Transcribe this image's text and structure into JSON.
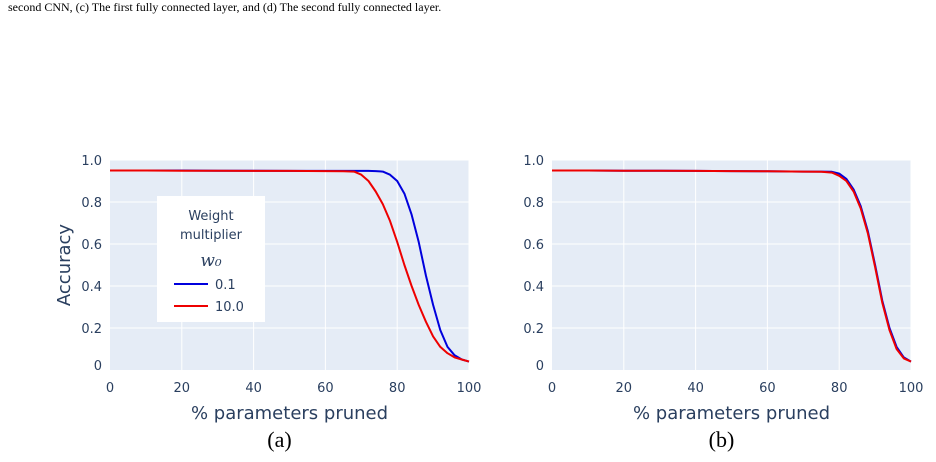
{
  "caption": "second CNN, (c) The first fully connected layer, and (d) The second fully connected layer.",
  "chart_data": [
    {
      "type": "line",
      "panel_label": "(a)",
      "xlabel": "% parameters pruned",
      "ylabel": "Accuracy",
      "xlim": [
        0,
        100
      ],
      "ylim": [
        0,
        1.0
      ],
      "xticks": [
        "0",
        "20",
        "40",
        "60",
        "80",
        "100"
      ],
      "yticks": [
        "0",
        "0.2",
        "0.4",
        "0.6",
        "0.8",
        "1.0"
      ],
      "grid": true,
      "legend": {
        "title_lines": [
          "Weight",
          "multiplier"
        ],
        "title_math": "w₀",
        "placement": "left-center"
      },
      "x": [
        0,
        10,
        20,
        30,
        40,
        50,
        60,
        65,
        68,
        70,
        72,
        74,
        76,
        78,
        80,
        82,
        84,
        86,
        88,
        90,
        92,
        94,
        96,
        98,
        100
      ],
      "series": [
        {
          "name": "0.1",
          "color": "#0000dd",
          "values": [
            0.95,
            0.95,
            0.95,
            0.949,
            0.949,
            0.948,
            0.948,
            0.948,
            0.948,
            0.948,
            0.948,
            0.947,
            0.945,
            0.93,
            0.9,
            0.84,
            0.74,
            0.61,
            0.45,
            0.31,
            0.19,
            0.11,
            0.07,
            0.05,
            0.04
          ]
        },
        {
          "name": "10.0",
          "color": "#ee0000",
          "values": [
            0.95,
            0.95,
            0.949,
            0.949,
            0.948,
            0.948,
            0.947,
            0.946,
            0.945,
            0.93,
            0.9,
            0.85,
            0.79,
            0.71,
            0.61,
            0.5,
            0.4,
            0.31,
            0.23,
            0.16,
            0.11,
            0.08,
            0.06,
            0.05,
            0.04
          ]
        }
      ]
    },
    {
      "type": "line",
      "panel_label": "(b)",
      "xlabel": "% parameters pruned",
      "ylabel": "",
      "xlim": [
        0,
        100
      ],
      "ylim": [
        0,
        1.0
      ],
      "xticks": [
        "0",
        "20",
        "40",
        "60",
        "80",
        "100"
      ],
      "yticks": [
        "0",
        "0.2",
        "0.4",
        "0.6",
        "0.8",
        "1.0"
      ],
      "grid": true,
      "x": [
        0,
        10,
        20,
        30,
        40,
        50,
        60,
        70,
        75,
        78,
        80,
        82,
        84,
        86,
        88,
        90,
        92,
        94,
        96,
        98,
        100
      ],
      "series": [
        {
          "name": "0.1",
          "color": "#0000dd",
          "values": [
            0.95,
            0.95,
            0.949,
            0.949,
            0.948,
            0.947,
            0.946,
            0.945,
            0.945,
            0.944,
            0.935,
            0.91,
            0.86,
            0.78,
            0.66,
            0.5,
            0.33,
            0.2,
            0.11,
            0.06,
            0.04
          ]
        },
        {
          "name": "10.0",
          "color": "#ee0000",
          "values": [
            0.95,
            0.95,
            0.949,
            0.949,
            0.948,
            0.947,
            0.946,
            0.945,
            0.944,
            0.94,
            0.925,
            0.9,
            0.85,
            0.77,
            0.65,
            0.49,
            0.32,
            0.19,
            0.1,
            0.055,
            0.04
          ]
        }
      ]
    }
  ]
}
